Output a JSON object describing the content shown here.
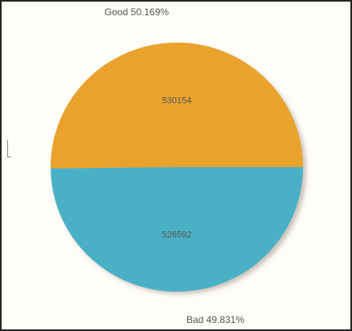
{
  "chart_data": {
    "type": "pie",
    "slices": [
      {
        "label": "Good",
        "value": 530154,
        "percent_label": "Good 50.169%",
        "color": "#e9a22c"
      },
      {
        "label": "Bad",
        "value": 526592,
        "percent_label": "Bad 49.831%",
        "color": "#4ab0c6"
      }
    ],
    "legend": "none",
    "data_labels": "inside"
  },
  "colors": {
    "background": "#fffdf8",
    "border": "#222222",
    "shadow": "#c8c2b8",
    "label_text": "#555555"
  }
}
